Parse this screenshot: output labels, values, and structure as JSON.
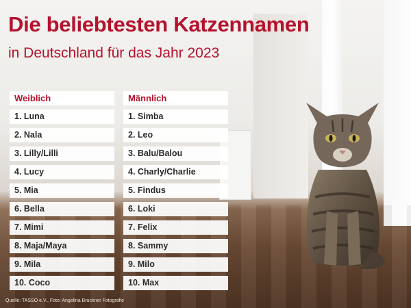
{
  "title": "Die beliebtesten Katzennamen",
  "subtitle": "in Deutschland für das Jahr 2023",
  "female": {
    "header": "Weiblich",
    "names": [
      "1. Luna",
      "2. Nala",
      "3. Lilly/Lilli",
      "4. Lucy",
      "5. Mia",
      "6. Bella",
      "7. Mimi",
      "8. Maja/Maya",
      "9. Mila",
      "10. Coco"
    ]
  },
  "male": {
    "header": "Männlich",
    "names": [
      "1. Simba",
      "2. Leo",
      "3. Balu/Balou",
      "4. Charly/Charlie",
      "5. Findus",
      "6. Loki",
      "7. Felix",
      "8. Sammy",
      "9. Milo",
      "10. Max"
    ]
  },
  "source": "Quelle: TASSO e.V., Foto: Angelina Bruckner Fotografie",
  "colors": {
    "accent": "#b5122d"
  }
}
